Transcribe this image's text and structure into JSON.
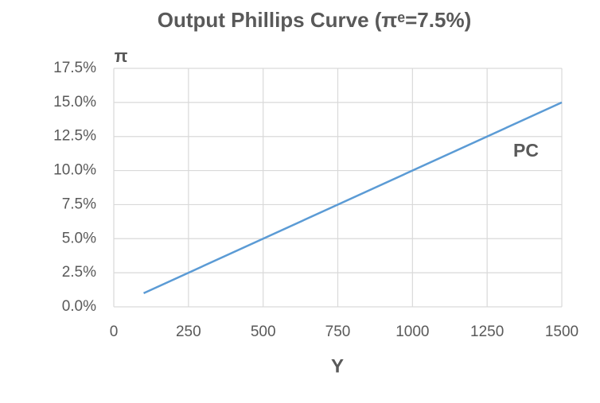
{
  "chart_data": {
    "type": "line",
    "title": "Output Phillips Curve (πᵉ=7.5%)",
    "x_label": "Y",
    "y_label": "π",
    "annotation": "PC",
    "x": [
      100,
      1500
    ],
    "series": [
      {
        "name": "PC",
        "color": "#5b9bd5",
        "values": [
          1.0,
          15.0
        ]
      }
    ],
    "xlim": [
      0,
      1500
    ],
    "xticks": [
      0,
      250,
      500,
      750,
      1000,
      1250,
      1500
    ],
    "ylim": [
      0,
      17.5
    ],
    "yticks": [
      {
        "value": 0,
        "label": "0.0%"
      },
      {
        "value": 2.5,
        "label": "2.5%"
      },
      {
        "value": 5,
        "label": "5.0%"
      },
      {
        "value": 7.5,
        "label": "7.5%"
      },
      {
        "value": 10,
        "label": "10.0%"
      },
      {
        "value": 12.5,
        "label": "12.5%"
      },
      {
        "value": 15,
        "label": "15.0%"
      },
      {
        "value": 17.5,
        "label": "17.5%"
      }
    ],
    "grid": true
  }
}
